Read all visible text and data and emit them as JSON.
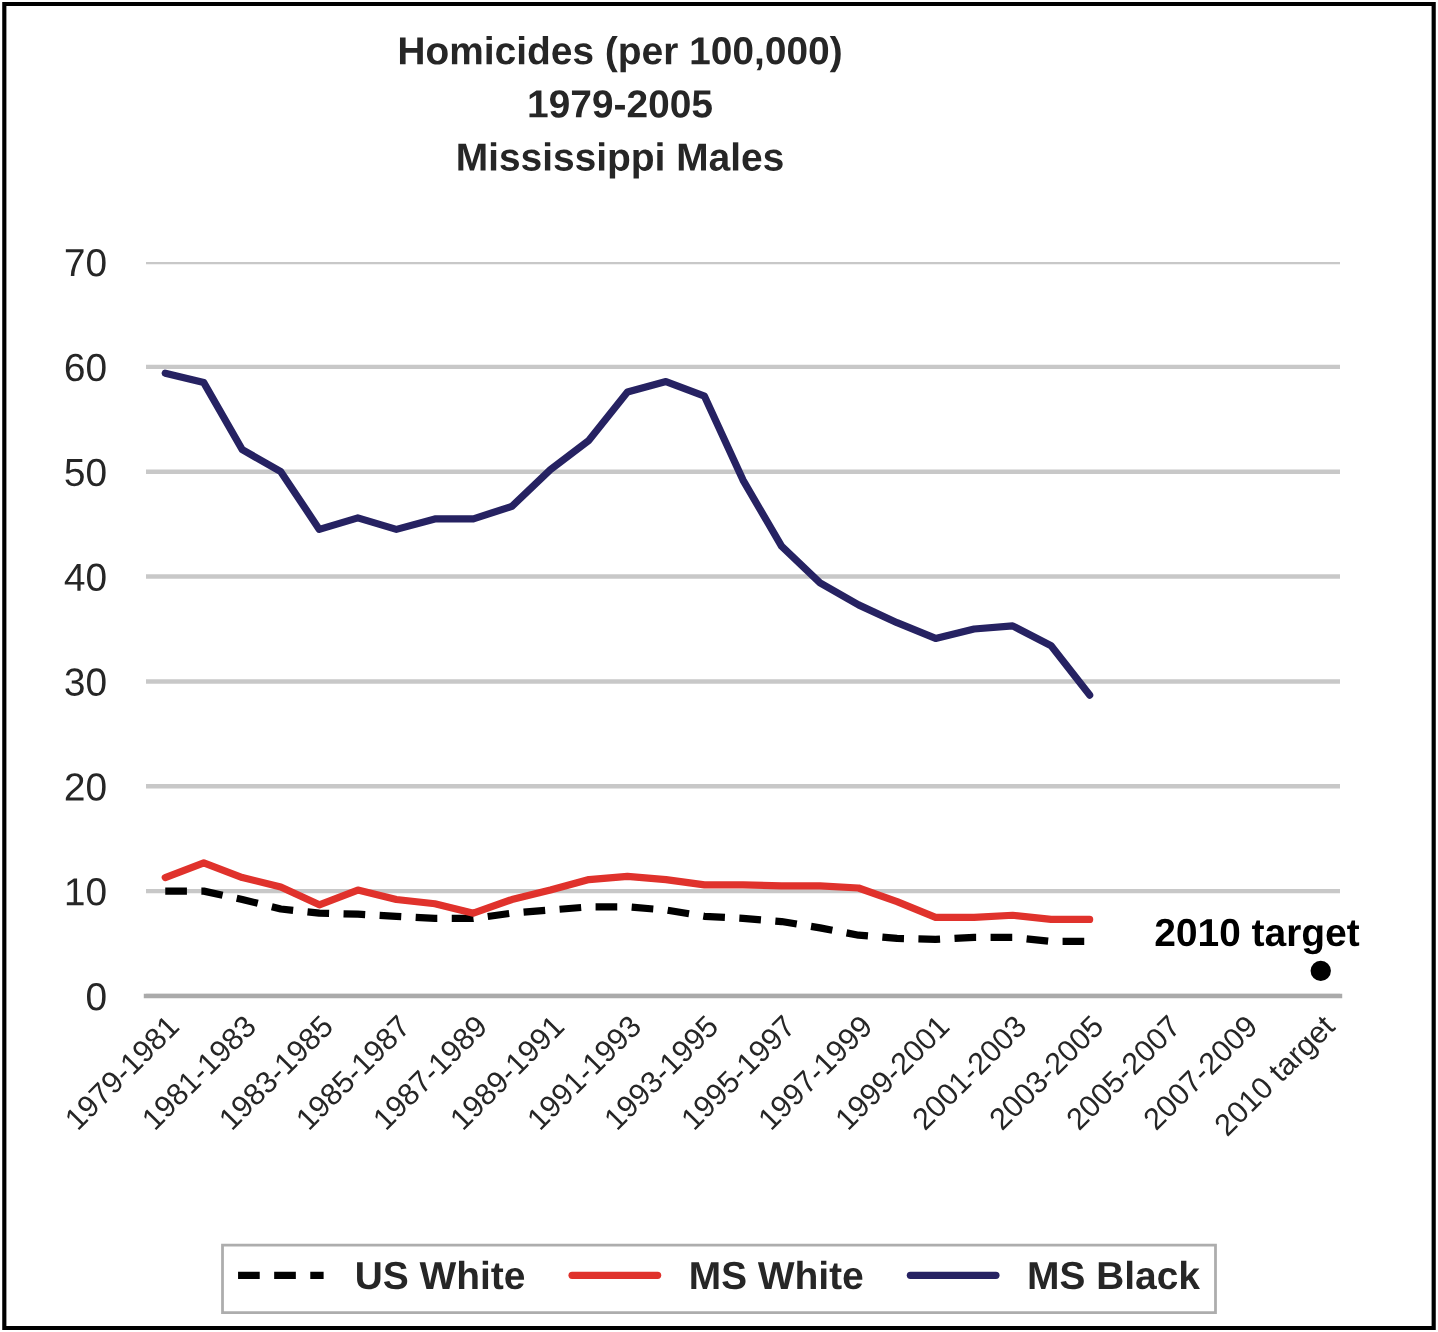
{
  "chart_data": {
    "type": "line",
    "title": "Homicides (per 100,000)\n1979-2005\nMississippi Males",
    "categories": [
      "1979-1981",
      null,
      "1981-1983",
      null,
      "1983-1985",
      null,
      "1985-1987",
      null,
      "1987-1989",
      null,
      "1989-1991",
      null,
      "1991-1993",
      null,
      "1993-1995",
      null,
      "1995-1997",
      null,
      "1997-1999",
      null,
      "1999-2001",
      null,
      "2001-2003",
      null,
      "2003-2005",
      null,
      "2005-2007",
      null,
      "2007-2009",
      null,
      "2010 target"
    ],
    "series": [
      {
        "name": "US White",
        "color": "#000000",
        "line_style": "dashed",
        "values": [
          10.0,
          10.0,
          9.2,
          8.3,
          7.9,
          7.8,
          7.6,
          7.4,
          7.4,
          7.9,
          8.2,
          8.5,
          8.5,
          8.2,
          7.6,
          7.4,
          7.1,
          6.5,
          5.8,
          5.5,
          5.4,
          5.6,
          5.6,
          5.2,
          5.2,
          null,
          null,
          null,
          null,
          null,
          null
        ]
      },
      {
        "name": "MS White",
        "color": "#e0322c",
        "line_style": "solid",
        "values": [
          11.3,
          12.7,
          11.3,
          10.4,
          8.7,
          10.1,
          9.2,
          8.8,
          7.9,
          9.2,
          10.1,
          11.1,
          11.4,
          11.1,
          10.6,
          10.6,
          10.5,
          10.5,
          10.3,
          9.0,
          7.5,
          7.5,
          7.7,
          7.3,
          7.3,
          null,
          null,
          null,
          null,
          null,
          null
        ]
      },
      {
        "name": "MS Black",
        "color": "#262262",
        "line_style": "solid",
        "values": [
          59.4,
          58.5,
          52.1,
          50.0,
          44.5,
          45.6,
          44.5,
          45.5,
          45.5,
          46.7,
          50.2,
          53.0,
          57.6,
          58.6,
          57.2,
          49.2,
          42.9,
          39.4,
          37.3,
          35.6,
          34.1,
          35.0,
          35.3,
          33.4,
          28.7,
          null,
          null,
          null,
          null,
          null,
          null
        ]
      },
      {
        "name": "2010 target",
        "type": "scatter",
        "marker": "circle",
        "color": "#000000",
        "values": [
          null,
          null,
          null,
          null,
          null,
          null,
          null,
          null,
          null,
          null,
          null,
          null,
          null,
          null,
          null,
          null,
          null,
          null,
          null,
          null,
          null,
          null,
          null,
          null,
          null,
          null,
          null,
          null,
          null,
          null,
          2.4
        ]
      }
    ],
    "ylim": [
      0,
      70
    ],
    "yticks": [
      0,
      10,
      20,
      30,
      40,
      50,
      60,
      70
    ],
    "grid": "y",
    "legend": "bottom",
    "marker": "none"
  }
}
